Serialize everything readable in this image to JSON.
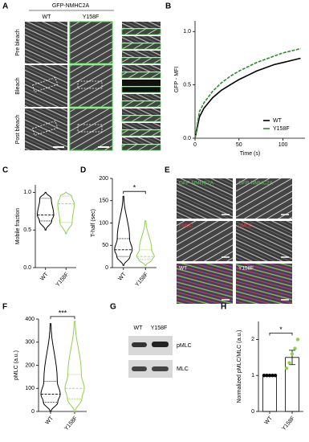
{
  "panel_labels": [
    "A",
    "B",
    "C",
    "D",
    "E",
    "F",
    "G",
    "H"
  ],
  "panel_a": {
    "title": "GFP-NMHC2A",
    "columns": [
      "WT",
      "Y158F"
    ],
    "rows": [
      "Pre bleach",
      "Bleach",
      "Post bleach"
    ]
  },
  "panel_e": {
    "gfp": "GFP-NMHC2A",
    "pmlc": "pMLC",
    "wt": "WT",
    "y158f": "Y158F"
  },
  "panel_g": {
    "lanes": [
      "WT",
      "Y158F"
    ],
    "bands": [
      "pMLC",
      "MLC"
    ]
  },
  "chart_data": [
    {
      "type": "line",
      "y_label": "GFP - MFI",
      "x_label": "Time (s)",
      "x": [
        0,
        5,
        10,
        20,
        30,
        40,
        50,
        60,
        70,
        80,
        90,
        100,
        110,
        120
      ],
      "series": [
        {
          "name": "WT",
          "color": "#000000",
          "values": [
            0,
            0.2,
            0.28,
            0.38,
            0.45,
            0.5,
            0.55,
            0.59,
            0.63,
            0.66,
            0.69,
            0.71,
            0.73,
            0.75
          ]
        },
        {
          "name": "Y158F",
          "color": "#2e8b2e",
          "values": [
            0,
            0.25,
            0.33,
            0.44,
            0.52,
            0.58,
            0.63,
            0.67,
            0.71,
            0.74,
            0.77,
            0.8,
            0.82,
            0.84
          ]
        }
      ],
      "xlim": [
        0,
        125
      ],
      "xticks": [
        0,
        50,
        100
      ],
      "ylim": [
        0,
        1.1
      ],
      "yticks": [
        {
          "value": 0,
          "label": "0.0"
        },
        {
          "value": 0.5,
          "label": "0.5"
        },
        {
          "value": 1,
          "label": "1.0"
        }
      ]
    },
    {
      "type": "violin",
      "y_label": "Mobile fraction",
      "categories": [
        "WT",
        "Y158F"
      ],
      "colors": [
        "#000000",
        "#8fd14f"
      ],
      "stats": [
        {
          "min": 0.5,
          "q1": 0.62,
          "median": 0.7,
          "q3": 0.92,
          "max": 1.0
        },
        {
          "min": 0.45,
          "q1": 0.6,
          "median": 0.85,
          "q3": 0.95,
          "max": 1.0
        }
      ],
      "ylim": [
        0,
        1.1
      ],
      "yticks": [
        {
          "value": 0,
          "label": "0.0"
        },
        {
          "value": 0.5,
          "label": "0.5"
        },
        {
          "value": 1,
          "label": "1.0"
        }
      ]
    },
    {
      "type": "violin",
      "y_label": "T-half (sec)",
      "categories": [
        "WT",
        "Y158F"
      ],
      "colors": [
        "#000000",
        "#8fd14f"
      ],
      "stats": [
        {
          "min": 5,
          "q1": 25,
          "median": 40,
          "q3": 65,
          "max": 160
        },
        {
          "min": 5,
          "q1": 18,
          "median": 25,
          "q3": 40,
          "max": 105
        }
      ],
      "annotation": "*",
      "ylim": [
        0,
        200
      ],
      "yticks": [
        0,
        50,
        100,
        150,
        200
      ]
    },
    {
      "type": "violin",
      "y_label": "pMLC (a.u.)",
      "categories": [
        "WT",
        "Y158F"
      ],
      "colors": [
        "#000000",
        "#8fd14f"
      ],
      "stats": [
        {
          "min": 0,
          "q1": 40,
          "median": 75,
          "q3": 130,
          "max": 380
        },
        {
          "min": 0,
          "q1": 55,
          "median": 100,
          "q3": 160,
          "max": 390
        }
      ],
      "annotation": "***",
      "ylim": [
        0,
        400
      ],
      "yticks": [
        0,
        100,
        200,
        300,
        400
      ]
    },
    {
      "type": "bar",
      "y_label": "Normalized pMLC/MLC (a.u.)",
      "categories": [
        "WT",
        "Y158F"
      ],
      "colors": [
        "#000000",
        "#8fd14f"
      ],
      "values": [
        1,
        1.5
      ],
      "errors": [
        0,
        0.2
      ],
      "points": [
        [
          1,
          1,
          1,
          1,
          1
        ],
        [
          1.2,
          1.35,
          1.6,
          1.75,
          2.0
        ]
      ],
      "annotation": "*",
      "ylim": [
        0,
        2.5
      ],
      "yticks": [
        0,
        1,
        2
      ]
    }
  ]
}
